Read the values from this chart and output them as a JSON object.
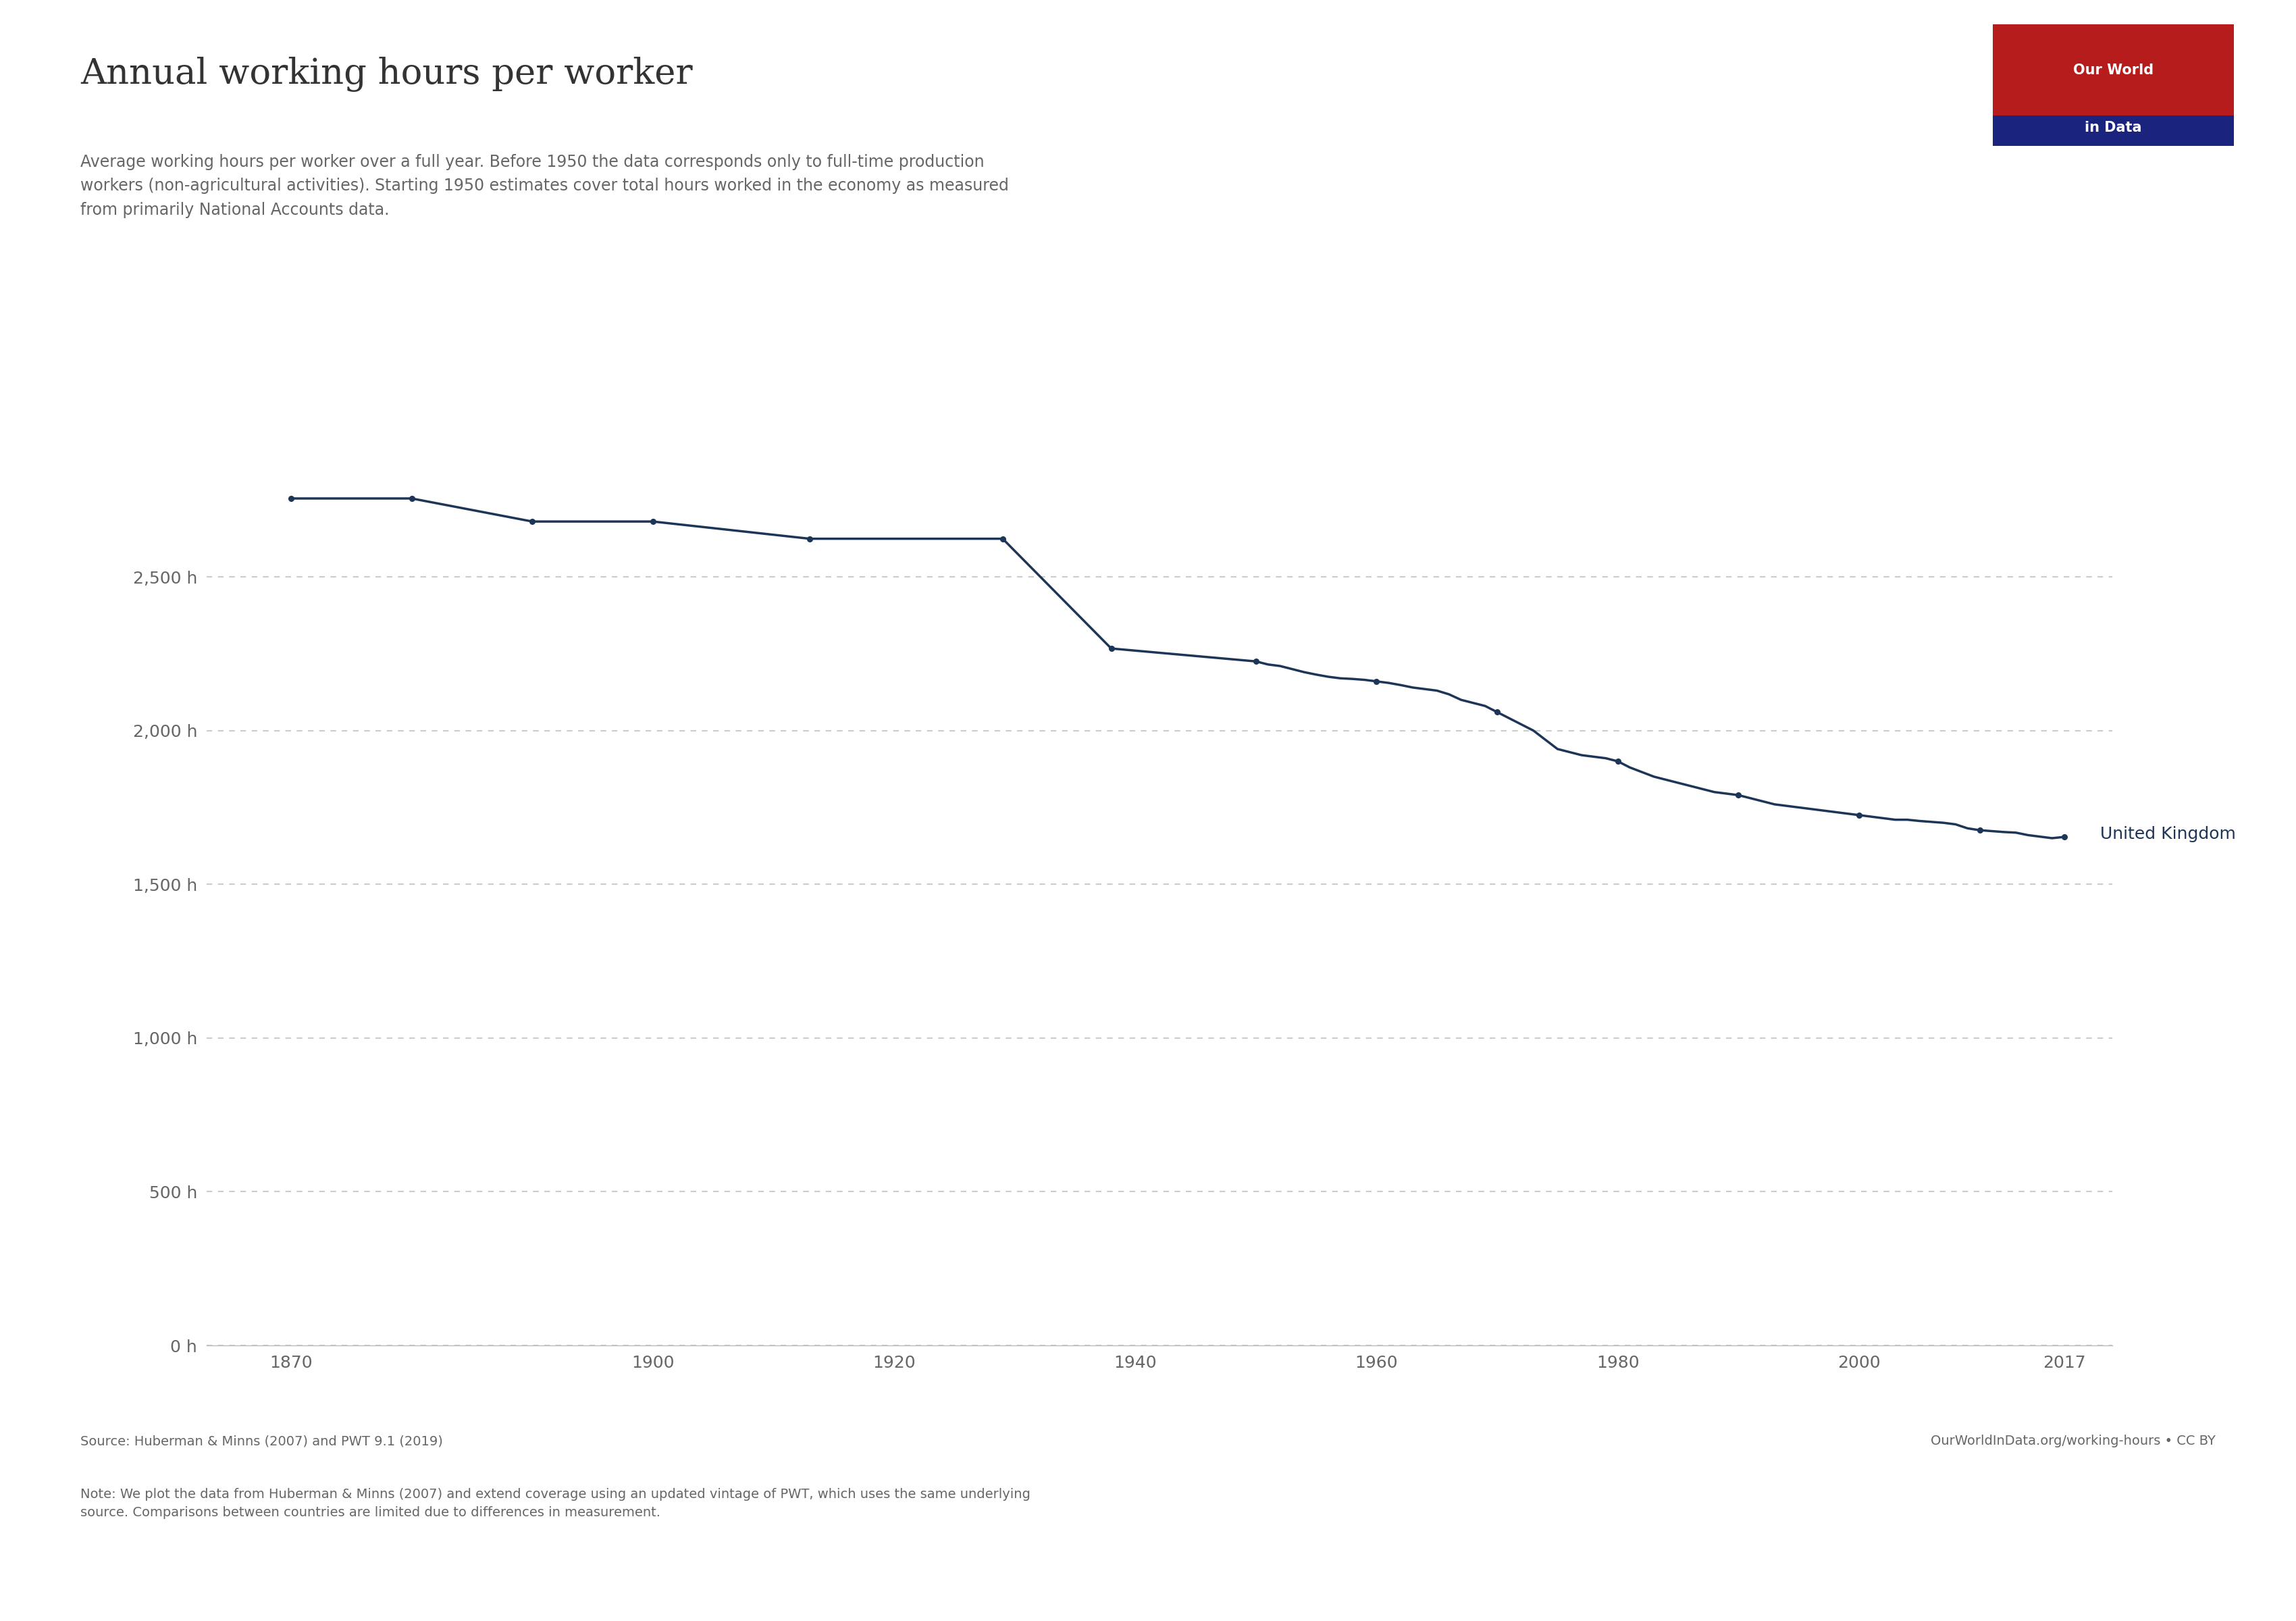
{
  "title": "Annual working hours per worker",
  "subtitle": "Average working hours per worker over a full year. Before 1950 the data corresponds only to full-time production\nworkers (non-agricultural activities). Starting 1950 estimates cover total hours worked in the economy as measured\nfrom primarily National Accounts data.",
  "line_color": "#1d3557",
  "background_color": "#ffffff",
  "label_color": "#666666",
  "grid_color": "#cccccc",
  "yticks": [
    0,
    500,
    1000,
    1500,
    2000,
    2500
  ],
  "xlim": [
    1863,
    2021
  ],
  "ylim": [
    0,
    2900
  ],
  "source_text": "Source: Huberman & Minns (2007) and PWT 9.1 (2019)",
  "note_text": "Note: We plot the data from Huberman & Minns (2007) and extend coverage using an updated vintage of PWT, which uses the same underlying\nsource. Comparisons between countries are limited due to differences in measurement.",
  "owid_url": "OurWorldInData.org/working-hours • CC BY",
  "series_label": "United Kingdom",
  "data_years": [
    1870,
    1880,
    1890,
    1900,
    1913,
    1929,
    1938,
    1950,
    1951,
    1952,
    1953,
    1954,
    1955,
    1956,
    1957,
    1958,
    1959,
    1960,
    1961,
    1962,
    1963,
    1964,
    1965,
    1966,
    1967,
    1968,
    1969,
    1970,
    1971,
    1972,
    1973,
    1974,
    1975,
    1976,
    1977,
    1978,
    1979,
    1980,
    1981,
    1982,
    1983,
    1984,
    1985,
    1986,
    1987,
    1988,
    1989,
    1990,
    1991,
    1992,
    1993,
    1994,
    1995,
    1996,
    1997,
    1998,
    1999,
    2000,
    2001,
    2002,
    2003,
    2004,
    2005,
    2006,
    2007,
    2008,
    2009,
    2010,
    2011,
    2012,
    2013,
    2014,
    2015,
    2016,
    2017
  ],
  "data_values": [
    2755,
    2755,
    2680,
    2680,
    2624,
    2624,
    2267,
    2225,
    2215,
    2210,
    2200,
    2190,
    2182,
    2175,
    2170,
    2168,
    2165,
    2160,
    2155,
    2148,
    2140,
    2135,
    2130,
    2118,
    2100,
    2090,
    2080,
    2060,
    2040,
    2020,
    2000,
    1970,
    1940,
    1930,
    1920,
    1915,
    1910,
    1900,
    1880,
    1865,
    1850,
    1840,
    1830,
    1820,
    1810,
    1800,
    1795,
    1790,
    1780,
    1770,
    1760,
    1755,
    1750,
    1745,
    1740,
    1735,
    1730,
    1725,
    1720,
    1715,
    1710,
    1710,
    1706,
    1703,
    1700,
    1695,
    1682,
    1676,
    1673,
    1670,
    1668,
    1660,
    1655,
    1650,
    1654
  ],
  "xticks": [
    1870,
    1900,
    1920,
    1940,
    1960,
    1980,
    2000,
    2017
  ],
  "logo_bg": "#b71c1c",
  "logo_line_bg": "#1a237e",
  "logo_text_color": "#ffffff",
  "logo_text": "Our World\nin Data",
  "title_color": "#333333",
  "title_fontsize": 38,
  "subtitle_fontsize": 17,
  "tick_fontsize": 18,
  "annotation_fontsize": 18,
  "source_fontsize": 14,
  "logo_fontsize": 15
}
